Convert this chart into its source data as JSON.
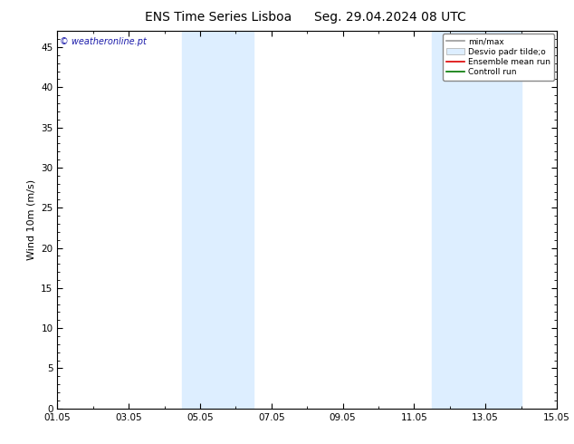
{
  "title_left": "ENS Time Series Lisboa",
  "title_right": "Seg. 29.04.2024 08 UTC",
  "ylabel": "Wind 10m (m/s)",
  "xmin": 0,
  "xmax": 14,
  "ymin": 0,
  "ymax": 47,
  "yticks": [
    0,
    5,
    10,
    15,
    20,
    25,
    30,
    35,
    40,
    45
  ],
  "xtick_labels": [
    "01.05",
    "03.05",
    "05.05",
    "07.05",
    "09.05",
    "11.05",
    "13.05",
    "15.05"
  ],
  "xtick_positions": [
    0,
    2,
    4,
    6,
    8,
    10,
    12,
    14
  ],
  "shaded_bands": [
    [
      3.5,
      4.5
    ],
    [
      4.5,
      5.5
    ],
    [
      10.5,
      11.5
    ],
    [
      11.5,
      13.0
    ]
  ],
  "shade_color": "#ddeeff",
  "background_color": "#ffffff",
  "watermark_text": "© weatheronline.pt",
  "watermark_color": "#1a1aaa",
  "legend_items": [
    {
      "label": "min/max",
      "color": "#999999",
      "lw": 1.2,
      "type": "line"
    },
    {
      "label": "Desvio padr tilde;o",
      "color": "#ddeeff",
      "edge": "#aaaaaa",
      "type": "box"
    },
    {
      "label": "Ensemble mean run",
      "color": "#dd0000",
      "lw": 1.2,
      "type": "line"
    },
    {
      "label": "Controll run",
      "color": "#007700",
      "lw": 1.2,
      "type": "line"
    }
  ],
  "title_fontsize": 10,
  "axis_fontsize": 8,
  "tick_fontsize": 7.5
}
